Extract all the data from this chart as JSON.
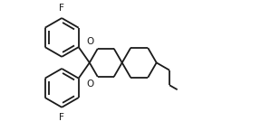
{
  "bg_color": "#ffffff",
  "line_color": "#1a1a1a",
  "line_width": 1.3,
  "font_size": 7.5,
  "figsize": [
    3.09,
    1.45
  ],
  "dpi": 100,
  "xlim": [
    -0.2,
    7.8
  ],
  "ylim": [
    -0.3,
    3.9
  ]
}
